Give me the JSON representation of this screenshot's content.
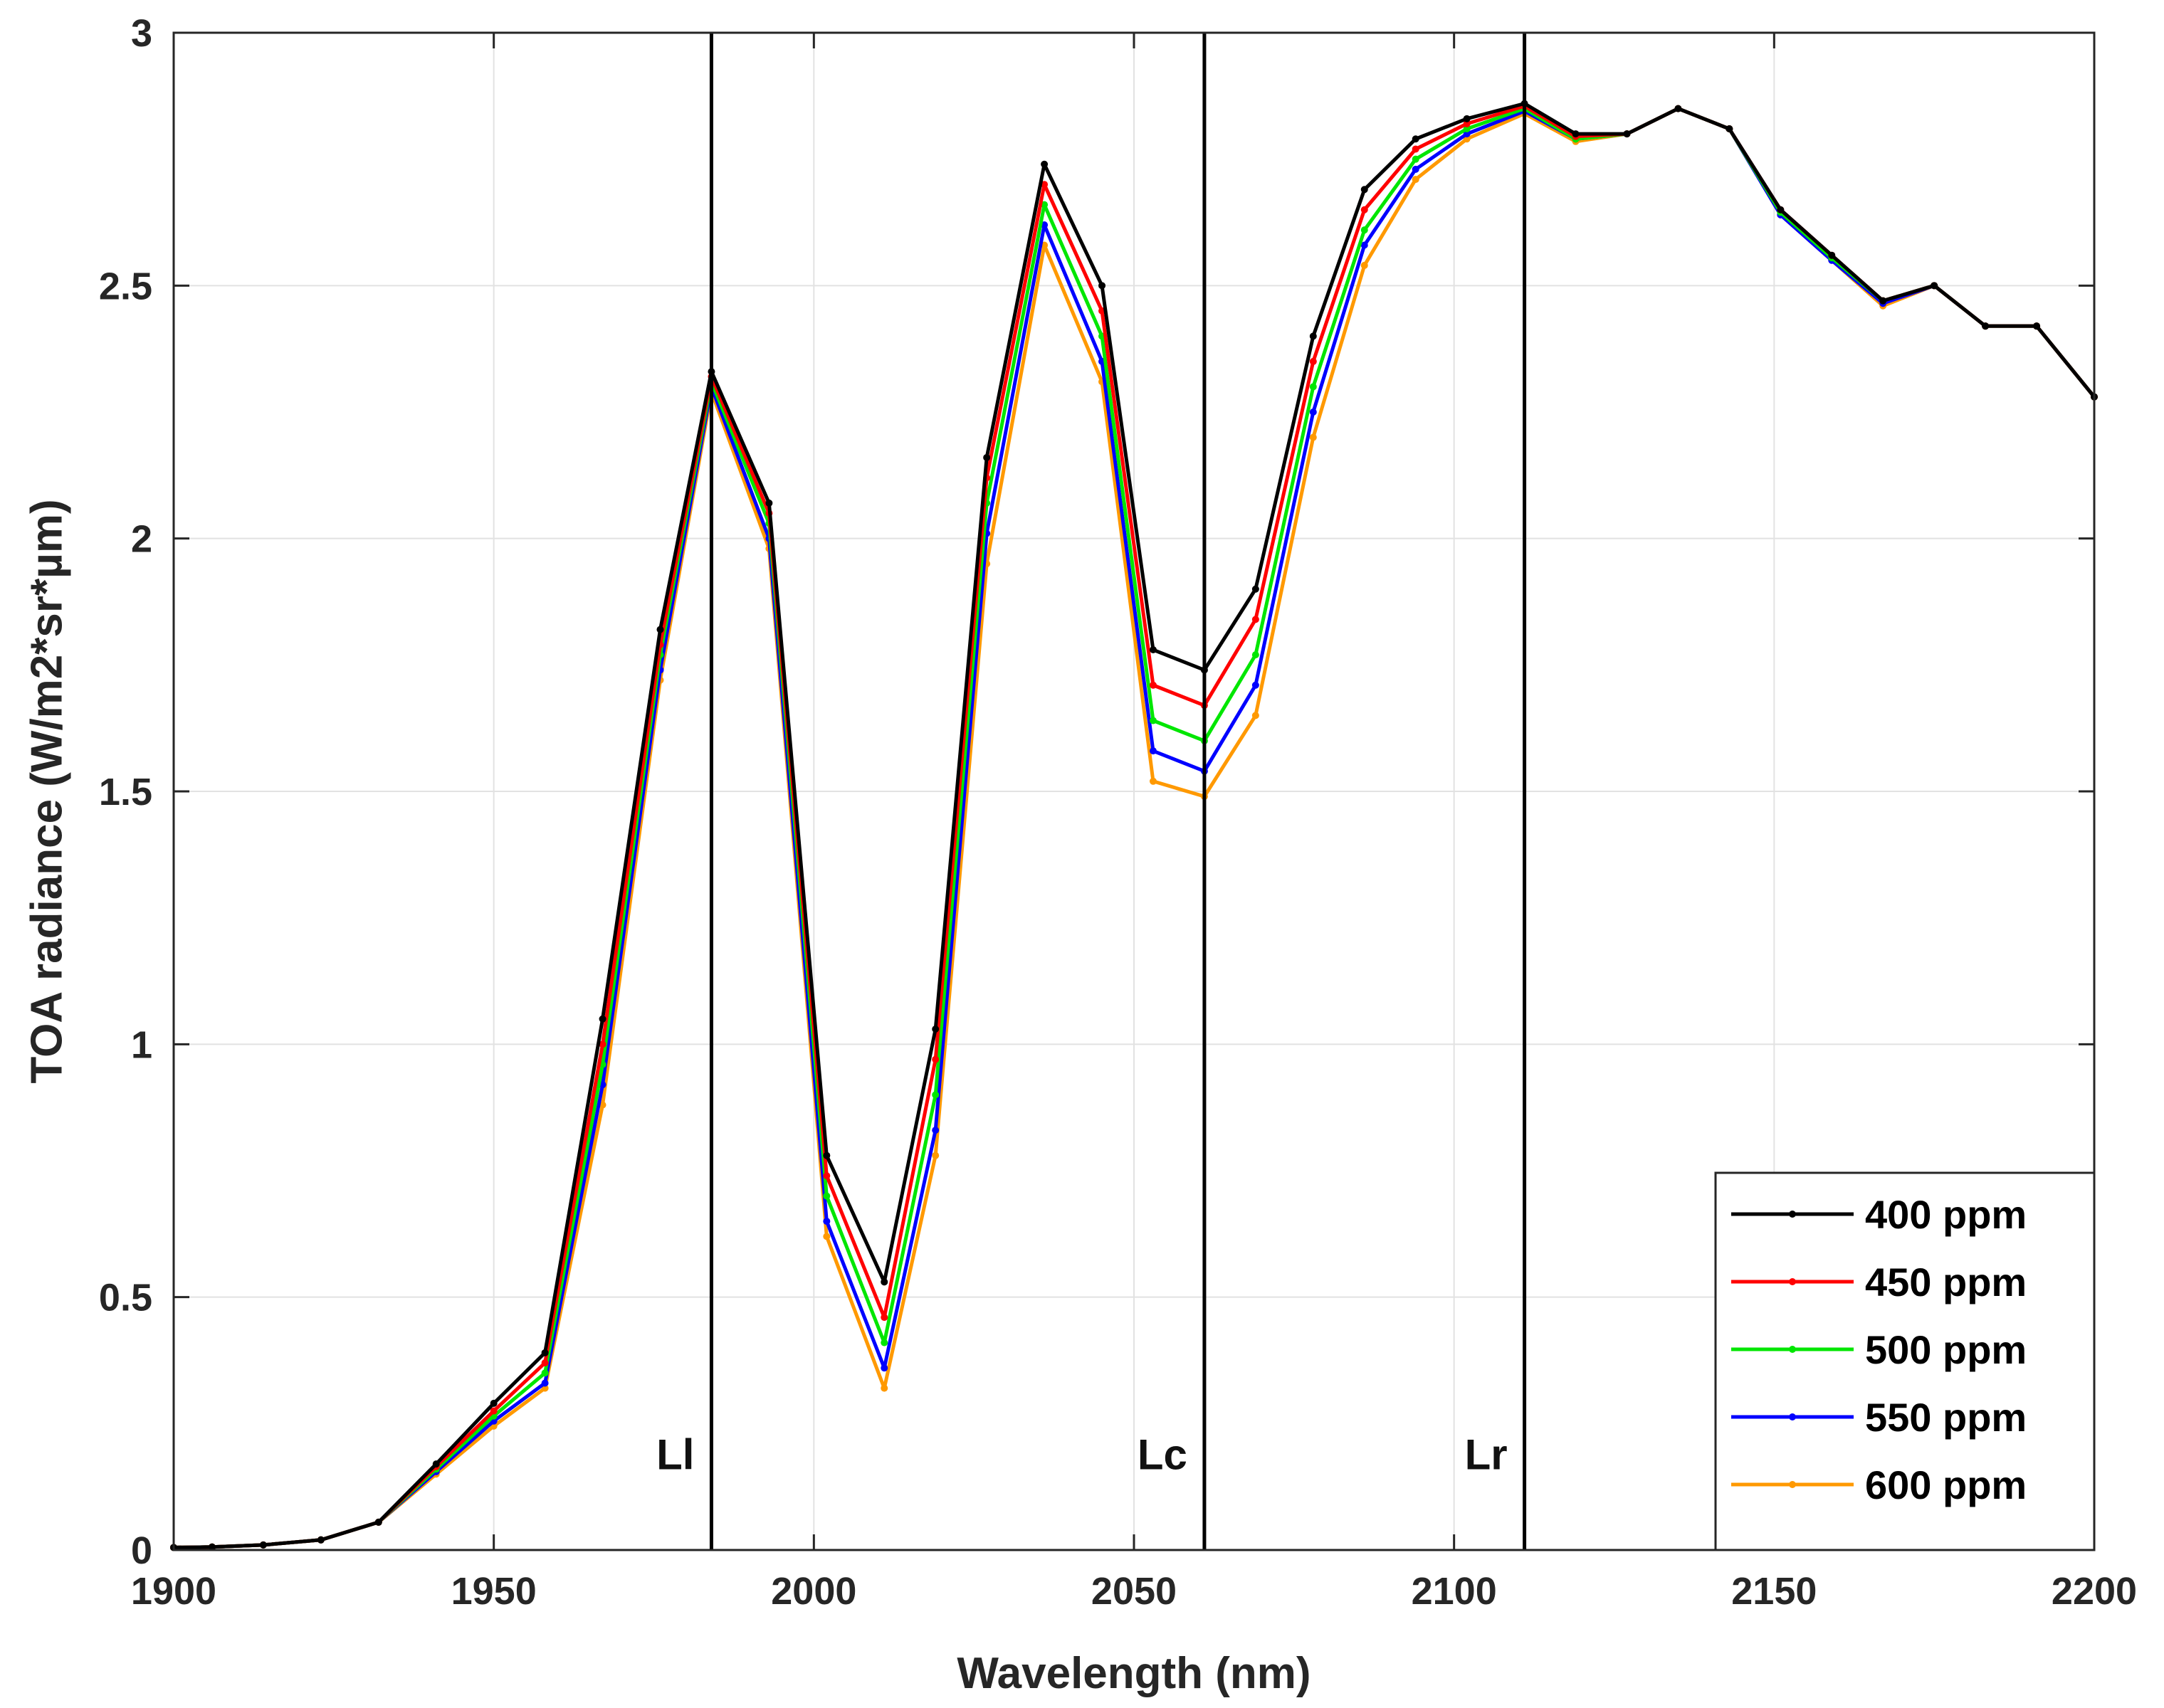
{
  "chart_data": {
    "type": "line",
    "title": "",
    "xlabel": "Wavelength (nm)",
    "ylabel": "TOA radiance (W/m2*sr*µm)",
    "xlim": [
      1900,
      2200
    ],
    "ylim": [
      0,
      3
    ],
    "xticks": [
      1900,
      1950,
      2000,
      2050,
      2100,
      2150,
      2200
    ],
    "yticks": [
      0,
      0.5,
      1,
      1.5,
      2,
      2.5,
      3
    ],
    "xtick_labels": [
      "1900",
      "1950",
      "2000",
      "2050",
      "2100",
      "2150",
      "2200"
    ],
    "ytick_labels": [
      "0",
      "0.5",
      "1",
      "1.5",
      "2",
      "2.5",
      "3"
    ],
    "grid": true,
    "legend_position": "bottom-right",
    "x": [
      1900,
      1906,
      1914,
      1923,
      1932,
      1941,
      1950,
      1958,
      1967,
      1976,
      1984,
      1993,
      2002,
      2011,
      2019,
      2027,
      2036,
      2045,
      2053,
      2061,
      2069,
      2078,
      2086,
      2094,
      2102,
      2111,
      2119,
      2127,
      2135,
      2143,
      2151,
      2159,
      2167,
      2175,
      2183,
      2191,
      2200
    ],
    "series": [
      {
        "name": "400 ppm",
        "color": "#000000",
        "values": [
          0.005,
          0.006,
          0.01,
          0.02,
          0.055,
          0.17,
          0.29,
          0.39,
          1.05,
          1.82,
          2.33,
          2.07,
          0.78,
          0.53,
          1.03,
          2.16,
          2.74,
          2.5,
          1.78,
          1.74,
          1.9,
          2.4,
          2.69,
          2.79,
          2.83,
          2.86,
          2.8,
          2.8,
          2.85,
          2.81,
          2.65,
          2.56,
          2.47,
          2.5,
          2.42,
          2.42,
          2.28
        ]
      },
      {
        "name": "450 ppm",
        "color": "#ff0000",
        "values": [
          0.005,
          0.006,
          0.01,
          0.02,
          0.055,
          0.165,
          0.275,
          0.37,
          1.0,
          1.79,
          2.32,
          2.05,
          0.74,
          0.46,
          0.97,
          2.12,
          2.7,
          2.45,
          1.71,
          1.67,
          1.84,
          2.35,
          2.65,
          2.77,
          2.82,
          2.855,
          2.795,
          2.8,
          2.85,
          2.81,
          2.65,
          2.56,
          2.47,
          2.5,
          2.42,
          2.42,
          2.28
        ]
      },
      {
        "name": "500 ppm",
        "color": "#00e600",
        "values": [
          0.005,
          0.006,
          0.01,
          0.02,
          0.055,
          0.16,
          0.265,
          0.35,
          0.96,
          1.77,
          2.31,
          2.03,
          0.7,
          0.41,
          0.9,
          2.07,
          2.66,
          2.4,
          1.64,
          1.6,
          1.77,
          2.3,
          2.61,
          2.75,
          2.81,
          2.85,
          2.79,
          2.8,
          2.85,
          2.81,
          2.645,
          2.555,
          2.47,
          2.5,
          2.42,
          2.42,
          2.28
        ]
      },
      {
        "name": "550 ppm",
        "color": "#0000ff",
        "values": [
          0.005,
          0.006,
          0.01,
          0.02,
          0.055,
          0.155,
          0.255,
          0.33,
          0.92,
          1.74,
          2.3,
          2.0,
          0.65,
          0.36,
          0.83,
          2.01,
          2.62,
          2.35,
          1.58,
          1.54,
          1.71,
          2.25,
          2.58,
          2.73,
          2.8,
          2.845,
          2.79,
          2.8,
          2.85,
          2.81,
          2.64,
          2.55,
          2.465,
          2.5,
          2.42,
          2.42,
          2.28
        ]
      },
      {
        "name": "600 ppm",
        "color": "#ff9900",
        "values": [
          0.005,
          0.006,
          0.01,
          0.02,
          0.055,
          0.15,
          0.245,
          0.32,
          0.88,
          1.72,
          2.29,
          1.98,
          0.62,
          0.32,
          0.78,
          1.95,
          2.58,
          2.31,
          1.52,
          1.49,
          1.65,
          2.2,
          2.54,
          2.71,
          2.79,
          2.84,
          2.785,
          2.8,
          2.85,
          2.81,
          2.64,
          2.55,
          2.46,
          2.5,
          2.42,
          2.42,
          2.28
        ]
      }
    ],
    "vertical_lines": [
      {
        "label": "Ll",
        "x": 1984
      },
      {
        "label": "Lc",
        "x": 2061
      },
      {
        "label": "Lr",
        "x": 2111
      }
    ]
  }
}
